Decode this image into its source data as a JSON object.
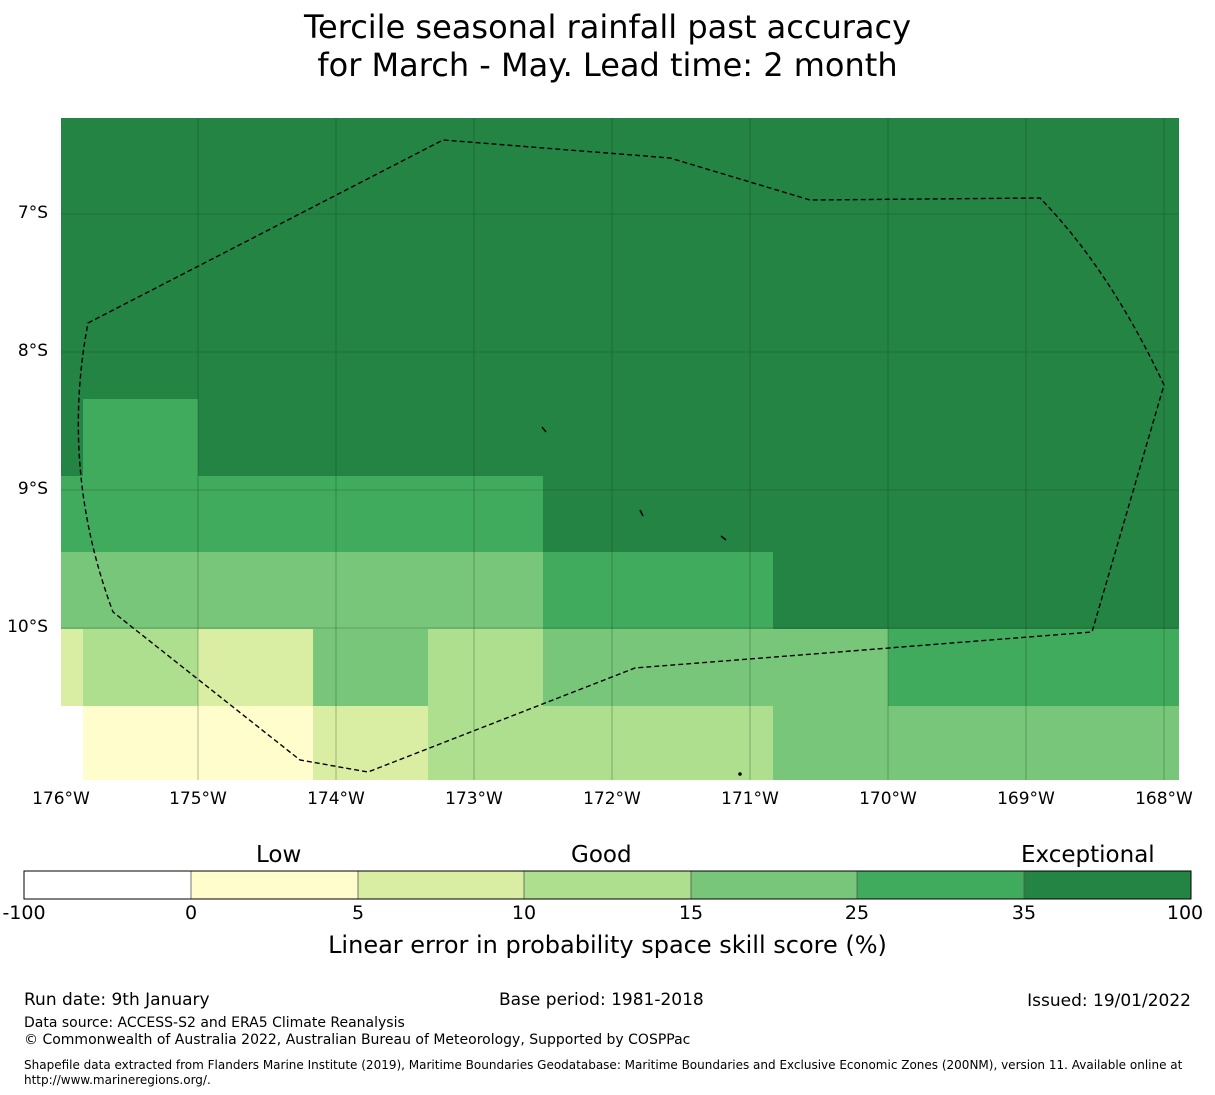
{
  "title": {
    "line1": "Tercile seasonal rainfall past accuracy",
    "line2": "for March - May. Lead time: 2 month"
  },
  "map": {
    "lat_labels": [
      "7°S",
      "8°S",
      "9°S",
      "10°S"
    ],
    "lon_labels": [
      "176°W",
      "175°W",
      "174°W",
      "173°W",
      "172°W",
      "171°W",
      "170°W",
      "169°W",
      "168°W"
    ],
    "lat_extent": [
      -11.2,
      -6.3
    ],
    "lon_extent": [
      -176.0,
      -167.9
    ],
    "boundary": "dashed exclusive economic zone outline"
  },
  "colorbar": {
    "words": [
      "Low",
      "Good",
      "Exceptional"
    ],
    "ticks": [
      "-100",
      "0",
      "5",
      "10",
      "15",
      "25",
      "35",
      "100"
    ],
    "colors": [
      "#ffffff",
      "#fefdcb",
      "#daeea3",
      "#addf8e",
      "#78c679",
      "#41ab5d",
      "#238443"
    ],
    "label": "Linear error in probability space skill score (%)"
  },
  "footer": {
    "run_date": "Run date: 9th January",
    "base_period": "Base period: 1981-2018",
    "issued": "Issued: 19/01/2022",
    "data_source": "Data source: ACCESS-S2 and ERA5 Climate Reanalysis",
    "copyright": "© Commonwealth of Australia 2022, Australian Bureau of Meteorology, Supported by COSPPac",
    "shapefile": "Shapefile data extracted from Flanders Marine Institute (2019), Maritime Boundaries Geodatabase: Maritime Boundaries and Exclusive Economic Zones (200NM), version 11. Available online at http://www.marineregions.org/."
  }
}
